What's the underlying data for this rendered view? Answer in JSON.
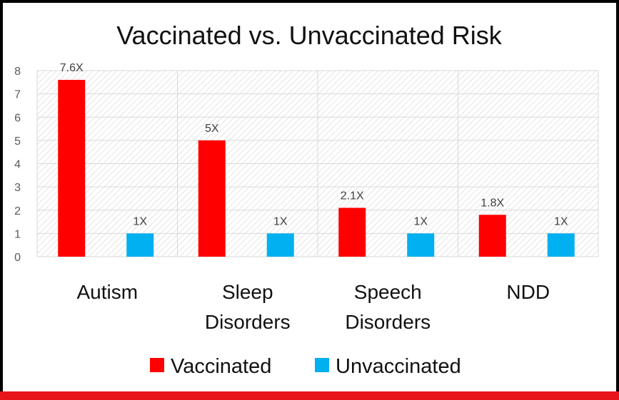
{
  "colors": {
    "vaccinated": "#ff0000",
    "unvaccinated": "#00b0f0",
    "frame": "#000000",
    "accent_bar": "#e8141c"
  },
  "chart_data": {
    "type": "bar",
    "title": "Vaccinated vs. Unvaccinated Risk",
    "categories": [
      [
        "Autism"
      ],
      [
        "Sleep",
        "Disorders"
      ],
      [
        "Speech",
        "Disorders"
      ],
      [
        "NDD"
      ]
    ],
    "series": [
      {
        "name": "Vaccinated",
        "values": [
          7.6,
          5,
          2.1,
          1.8
        ],
        "labels": [
          "7.6X",
          "5X",
          "2.1X",
          "1.8X"
        ]
      },
      {
        "name": "Unvaccinated",
        "values": [
          1,
          1,
          1,
          1
        ],
        "labels": [
          "1X",
          "1X",
          "1X",
          "1X"
        ]
      }
    ],
    "yticks": [
      0,
      1,
      2,
      3,
      4,
      5,
      6,
      7,
      8
    ],
    "ylim": [
      0,
      8
    ],
    "grid": true,
    "legend_position": "bottom"
  }
}
